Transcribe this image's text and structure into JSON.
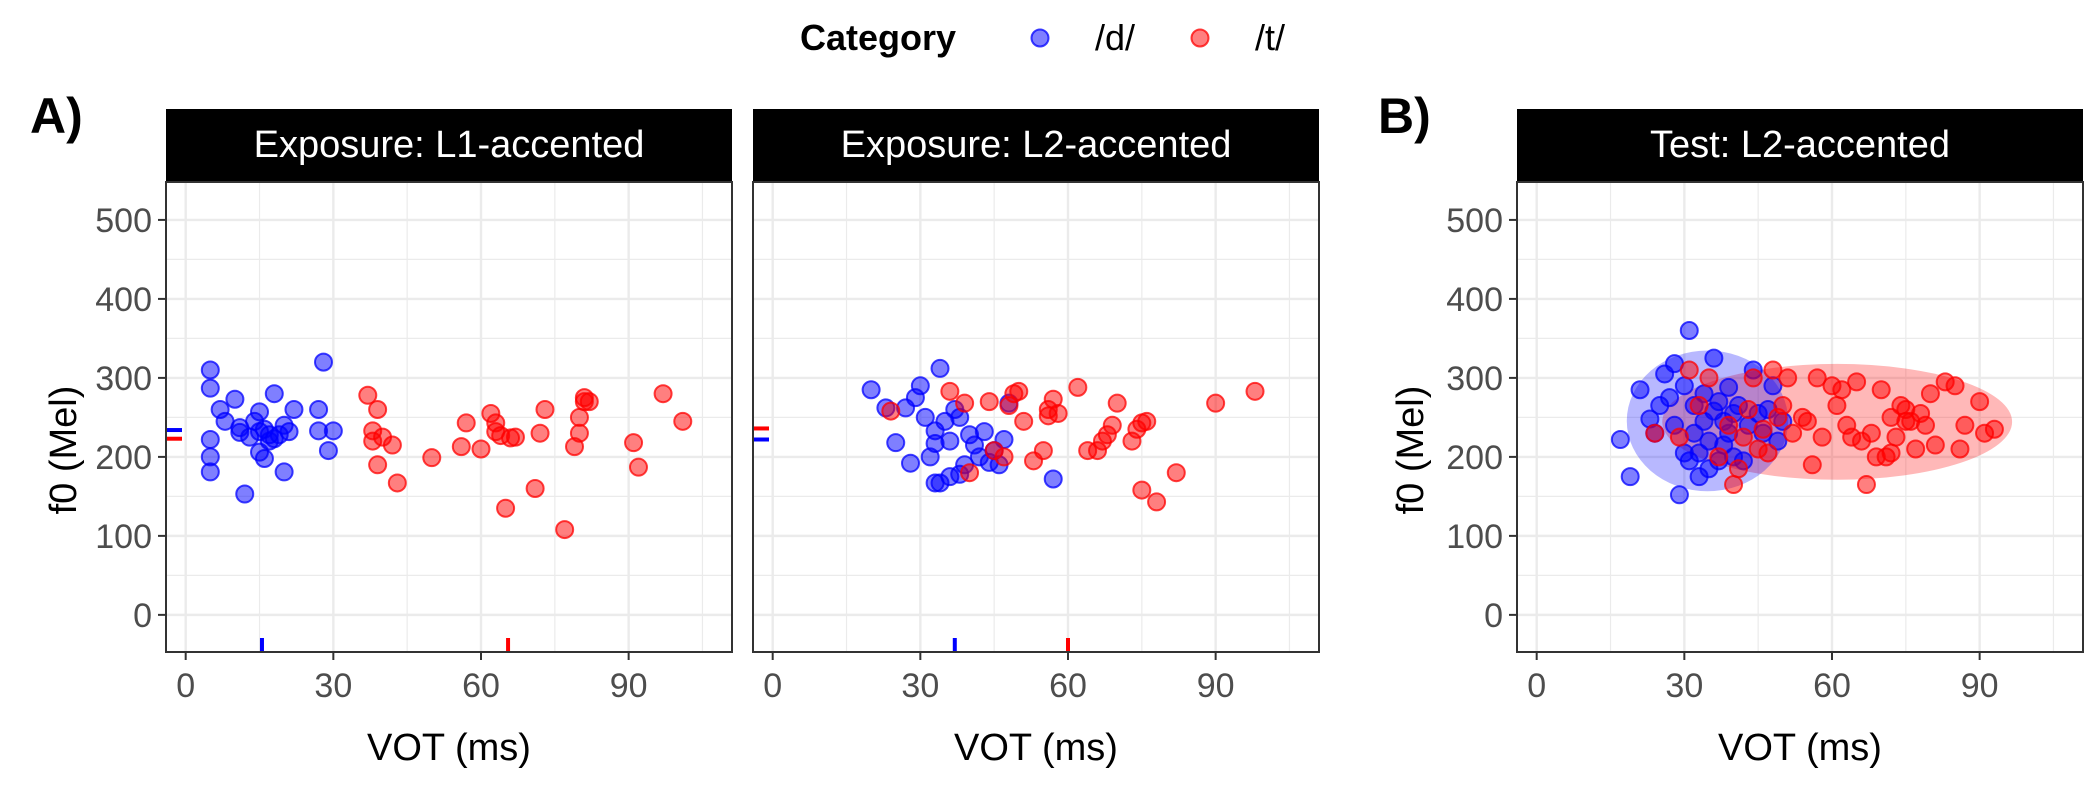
{
  "legend": {
    "title": "Category",
    "entries": [
      {
        "label": "/d/",
        "color": "#0000ff"
      },
      {
        "label": "/t/",
        "color": "#ff0000"
      }
    ]
  },
  "chart_data": [
    {
      "type": "scatter",
      "tag": "A)",
      "title": "Exposure: L1-accented",
      "xlabel": "VOT (ms)",
      "ylabel": "f0 (Mel)",
      "xlim": [
        -4,
        111
      ],
      "ylim": [
        -47,
        548
      ],
      "xticks": [
        0,
        30,
        60,
        90
      ],
      "yticks": [
        0,
        100,
        200,
        300,
        400,
        500
      ],
      "grid": true,
      "series": [
        {
          "name": "/d/",
          "color": "#0000ff",
          "x": [
            5,
            5,
            5,
            5,
            5,
            7,
            8,
            10,
            11,
            11,
            12,
            13,
            14,
            15,
            15,
            15,
            16,
            16,
            17,
            17,
            18,
            18,
            19,
            20,
            20,
            21,
            22,
            27,
            27,
            28,
            29,
            30
          ],
          "y": [
            310,
            287,
            222,
            200,
            181,
            260,
            245,
            273,
            237,
            231,
            153,
            225,
            245,
            206,
            232,
            257,
            198,
            235,
            220,
            228,
            280,
            223,
            228,
            181,
            240,
            232,
            260,
            260,
            233,
            320,
            208,
            233
          ],
          "mean_x": 15.5,
          "mean_y": 234
        },
        {
          "name": "/t/",
          "color": "#ff0000",
          "x": [
            37,
            38,
            38,
            39,
            39,
            40,
            42,
            43,
            50,
            56,
            57,
            60,
            62,
            63,
            63,
            64,
            65,
            66,
            67,
            71,
            72,
            73,
            77,
            79,
            80,
            80,
            81,
            81,
            82,
            91,
            92,
            97,
            101
          ],
          "y": [
            278,
            220,
            233,
            190,
            260,
            225,
            215,
            167,
            199,
            213,
            243,
            210,
            255,
            243,
            232,
            227,
            135,
            224,
            225,
            160,
            230,
            260,
            108,
            213,
            230,
            250,
            270,
            275,
            270,
            218,
            187,
            280,
            245
          ],
          "mean_x": 65.5,
          "mean_y": 223
        }
      ]
    },
    {
      "type": "scatter",
      "title": "Exposure: L2-accented",
      "xlabel": "VOT (ms)",
      "xlim": [
        -4,
        111
      ],
      "ylim": [
        -47,
        548
      ],
      "xticks": [
        0,
        30,
        60,
        90
      ],
      "yticks": [
        0,
        100,
        200,
        300,
        400,
        500
      ],
      "grid": true,
      "series": [
        {
          "name": "/d/",
          "color": "#0000ff",
          "x": [
            20,
            23,
            25,
            27,
            28,
            29,
            30,
            31,
            32,
            33,
            33,
            33,
            34,
            34,
            35,
            36,
            36,
            37,
            38,
            38,
            39,
            40,
            41,
            42,
            43,
            44,
            45,
            46,
            47,
            48,
            57
          ],
          "y": [
            285,
            262,
            218,
            262,
            192,
            275,
            290,
            250,
            200,
            217,
            167,
            233,
            312,
            167,
            245,
            220,
            175,
            260,
            250,
            178,
            190,
            228,
            215,
            200,
            232,
            193,
            208,
            190,
            222,
            268,
            172
          ],
          "mean_x": 37,
          "mean_y": 222
        },
        {
          "name": "/t/",
          "color": "#ff0000",
          "x": [
            24,
            36,
            39,
            40,
            44,
            45,
            47,
            48,
            49,
            50,
            51,
            53,
            55,
            56,
            56,
            57,
            58,
            62,
            64,
            66,
            67,
            68,
            69,
            70,
            73,
            74,
            75,
            75,
            76,
            78,
            82,
            90,
            98
          ],
          "y": [
            258,
            283,
            268,
            180,
            270,
            208,
            200,
            265,
            280,
            283,
            245,
            195,
            208,
            252,
            260,
            273,
            255,
            288,
            208,
            208,
            220,
            228,
            240,
            268,
            220,
            235,
            158,
            243,
            245,
            143,
            180,
            268,
            283
          ],
          "mean_x": 60,
          "mean_y": 236
        }
      ]
    },
    {
      "type": "scatter",
      "tag": "B)",
      "title": "Test: L2-accented",
      "xlabel": "VOT (ms)",
      "ylabel": "f0 (Mel)",
      "xlim": [
        -4,
        111
      ],
      "ylim": [
        -47,
        548
      ],
      "xticks": [
        0,
        30,
        60,
        90
      ],
      "yticks": [
        0,
        100,
        200,
        300,
        400,
        500
      ],
      "grid": true,
      "ellipses": true,
      "series": [
        {
          "name": "/d/",
          "color": "#0000ff",
          "x": [
            17,
            19,
            21,
            23,
            24,
            25,
            26,
            27,
            28,
            28,
            29,
            30,
            30,
            31,
            31,
            32,
            32,
            33,
            33,
            34,
            34,
            35,
            35,
            36,
            36,
            37,
            37,
            38,
            38,
            39,
            39,
            40,
            40,
            41,
            42,
            43,
            44,
            45,
            46,
            47,
            48,
            49,
            50
          ],
          "y": [
            222,
            175,
            285,
            248,
            230,
            265,
            305,
            275,
            240,
            318,
            152,
            205,
            290,
            195,
            360,
            265,
            230,
            205,
            175,
            280,
            245,
            220,
            185,
            325,
            258,
            270,
            195,
            245,
            215,
            288,
            230,
            200,
            255,
            265,
            195,
            240,
            310,
            255,
            230,
            260,
            290,
            220,
            245
          ],
          "mean_x": 36,
          "mean_y": 245
        },
        {
          "name": "/t/",
          "color": "#ff0000",
          "x": [
            24,
            29,
            31,
            33,
            35,
            37,
            39,
            40,
            41,
            42,
            43,
            44,
            45,
            46,
            47,
            48,
            49,
            50,
            51,
            52,
            54,
            55,
            56,
            57,
            58,
            60,
            61,
            62,
            63,
            64,
            65,
            66,
            67,
            68,
            69,
            70,
            71,
            72,
            72,
            73,
            74,
            75,
            75,
            76,
            77,
            78,
            79,
            80,
            81,
            83,
            85,
            86,
            87,
            90,
            91,
            93
          ],
          "y": [
            230,
            225,
            310,
            265,
            300,
            200,
            240,
            165,
            185,
            225,
            260,
            300,
            210,
            235,
            205,
            310,
            250,
            265,
            300,
            230,
            250,
            245,
            190,
            300,
            225,
            290,
            265,
            285,
            240,
            225,
            295,
            220,
            165,
            230,
            200,
            285,
            200,
            205,
            250,
            225,
            265,
            245,
            260,
            245,
            210,
            255,
            240,
            280,
            215,
            295,
            290,
            210,
            240,
            270,
            230,
            235
          ],
          "mean_x": 63,
          "mean_y": 243
        }
      ]
    }
  ]
}
